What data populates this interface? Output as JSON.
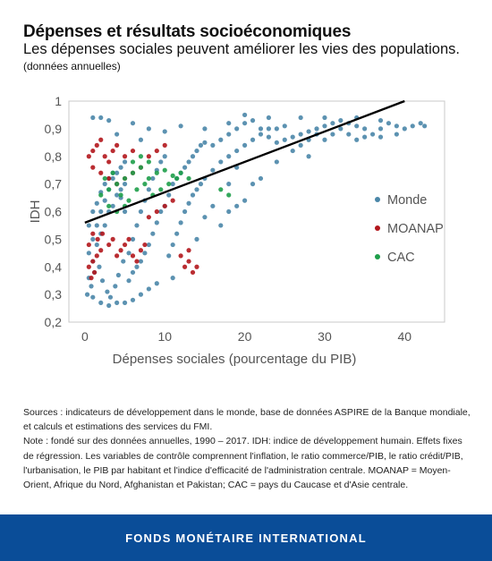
{
  "header": {
    "title": "Dépenses et résultats socioéconomiques",
    "subtitle": "Les dépenses sociales peuvent améliorer les vies des populations.",
    "note": "(données annuelles)"
  },
  "chart_data": {
    "type": "scatter",
    "xlabel": "Dépenses sociales (pourcentage du PIB)",
    "ylabel": "IDH",
    "xlim": [
      -2,
      45
    ],
    "ylim": [
      0.2,
      1.0
    ],
    "x_ticks": [
      "0",
      "10",
      "20",
      "30",
      "40"
    ],
    "x_tick_values": [
      0,
      10,
      20,
      30,
      40
    ],
    "y_ticks": [
      "0,2",
      "0,3",
      "0,4",
      "0,5",
      "0,6",
      "0,7",
      "0,8",
      "0,9",
      "1"
    ],
    "y_tick_values": [
      0.2,
      0.3,
      0.4,
      0.5,
      0.6,
      0.7,
      0.8,
      0.9,
      1.0
    ],
    "grid": false,
    "legend_position": "right",
    "series": [
      {
        "name": "Monde",
        "color": "#4a86a8",
        "points": [
          [
            0.5,
            0.36
          ],
          [
            1,
            0.42
          ],
          [
            1.5,
            0.48
          ],
          [
            2,
            0.52
          ],
          [
            2.5,
            0.55
          ],
          [
            3,
            0.6
          ],
          [
            3.5,
            0.62
          ],
          [
            4,
            0.66
          ],
          [
            4.5,
            0.68
          ],
          [
            5,
            0.7
          ],
          [
            0.5,
            0.45
          ],
          [
            1,
            0.5
          ],
          [
            1.5,
            0.55
          ],
          [
            2,
            0.6
          ],
          [
            2.5,
            0.64
          ],
          [
            3,
            0.68
          ],
          [
            3.5,
            0.72
          ],
          [
            4,
            0.74
          ],
          [
            4.5,
            0.76
          ],
          [
            5,
            0.78
          ],
          [
            0.5,
            0.55
          ],
          [
            1,
            0.6
          ],
          [
            1.5,
            0.63
          ],
          [
            2,
            0.67
          ],
          [
            2.5,
            0.7
          ],
          [
            3,
            0.72
          ],
          [
            3.5,
            0.74
          ],
          [
            4,
            0.7
          ],
          [
            4.5,
            0.65
          ],
          [
            5,
            0.6
          ],
          [
            0.3,
            0.3
          ],
          [
            0.8,
            0.33
          ],
          [
            1.2,
            0.38
          ],
          [
            1.8,
            0.4
          ],
          [
            2.2,
            0.35
          ],
          [
            2.8,
            0.31
          ],
          [
            3.2,
            0.29
          ],
          [
            3.8,
            0.33
          ],
          [
            4.2,
            0.37
          ],
          [
            4.8,
            0.42
          ],
          [
            5.5,
            0.45
          ],
          [
            6,
            0.5
          ],
          [
            6.5,
            0.55
          ],
          [
            7,
            0.6
          ],
          [
            7.5,
            0.64
          ],
          [
            8,
            0.68
          ],
          [
            8.5,
            0.72
          ],
          [
            9,
            0.75
          ],
          [
            9.5,
            0.78
          ],
          [
            10,
            0.8
          ],
          [
            5.5,
            0.35
          ],
          [
            6,
            0.38
          ],
          [
            6.5,
            0.4
          ],
          [
            7,
            0.42
          ],
          [
            7.5,
            0.45
          ],
          [
            8,
            0.48
          ],
          [
            8.5,
            0.52
          ],
          [
            9,
            0.56
          ],
          [
            9.5,
            0.6
          ],
          [
            10,
            0.62
          ],
          [
            10.5,
            0.66
          ],
          [
            11,
            0.7
          ],
          [
            11.5,
            0.72
          ],
          [
            12,
            0.74
          ],
          [
            12.5,
            0.76
          ],
          [
            13,
            0.78
          ],
          [
            13.5,
            0.8
          ],
          [
            14,
            0.82
          ],
          [
            14.5,
            0.84
          ],
          [
            15,
            0.85
          ],
          [
            10.5,
            0.44
          ],
          [
            11,
            0.48
          ],
          [
            11.5,
            0.52
          ],
          [
            12,
            0.56
          ],
          [
            12.5,
            0.6
          ],
          [
            13,
            0.63
          ],
          [
            13.5,
            0.66
          ],
          [
            14,
            0.68
          ],
          [
            14.5,
            0.7
          ],
          [
            15,
            0.72
          ],
          [
            16,
            0.75
          ],
          [
            17,
            0.78
          ],
          [
            18,
            0.8
          ],
          [
            19,
            0.82
          ],
          [
            20,
            0.84
          ],
          [
            21,
            0.86
          ],
          [
            22,
            0.88
          ],
          [
            23,
            0.9
          ],
          [
            24,
            0.9
          ],
          [
            25,
            0.91
          ],
          [
            16,
            0.84
          ],
          [
            17,
            0.86
          ],
          [
            18,
            0.88
          ],
          [
            19,
            0.9
          ],
          [
            20,
            0.92
          ],
          [
            21,
            0.93
          ],
          [
            22,
            0.9
          ],
          [
            23,
            0.87
          ],
          [
            24,
            0.85
          ],
          [
            25,
            0.86
          ],
          [
            26,
            0.87
          ],
          [
            27,
            0.88
          ],
          [
            28,
            0.89
          ],
          [
            29,
            0.9
          ],
          [
            30,
            0.91
          ],
          [
            31,
            0.92
          ],
          [
            32,
            0.93
          ],
          [
            33,
            0.92
          ],
          [
            34,
            0.91
          ],
          [
            35,
            0.9
          ],
          [
            26,
            0.82
          ],
          [
            27,
            0.84
          ],
          [
            28,
            0.86
          ],
          [
            29,
            0.88
          ],
          [
            30,
            0.86
          ],
          [
            31,
            0.88
          ],
          [
            32,
            0.9
          ],
          [
            33,
            0.88
          ],
          [
            34,
            0.86
          ],
          [
            35,
            0.87
          ],
          [
            36,
            0.88
          ],
          [
            37,
            0.9
          ],
          [
            38,
            0.92
          ],
          [
            39,
            0.91
          ],
          [
            40,
            0.9
          ],
          [
            41,
            0.91
          ],
          [
            42,
            0.92
          ],
          [
            42.5,
            0.91
          ],
          [
            37,
            0.87
          ],
          [
            39,
            0.88
          ],
          [
            17,
            0.55
          ],
          [
            18,
            0.6
          ],
          [
            19,
            0.62
          ],
          [
            20,
            0.64
          ],
          [
            21,
            0.7
          ],
          [
            22,
            0.72
          ],
          [
            18,
            0.7
          ],
          [
            16,
            0.62
          ],
          [
            15,
            0.58
          ],
          [
            14,
            0.5
          ],
          [
            1,
            0.94
          ],
          [
            2,
            0.94
          ],
          [
            3,
            0.93
          ],
          [
            6,
            0.92
          ],
          [
            12,
            0.91
          ],
          [
            15,
            0.9
          ],
          [
            8,
            0.9
          ],
          [
            10,
            0.89
          ],
          [
            4,
            0.88
          ],
          [
            7,
            0.86
          ],
          [
            3,
            0.26
          ],
          [
            4,
            0.27
          ],
          [
            5,
            0.27
          ],
          [
            6,
            0.28
          ],
          [
            7,
            0.3
          ],
          [
            8,
            0.32
          ],
          [
            9,
            0.34
          ],
          [
            2,
            0.27
          ],
          [
            1,
            0.29
          ],
          [
            11,
            0.36
          ],
          [
            18,
            0.92
          ],
          [
            20,
            0.95
          ],
          [
            23,
            0.94
          ],
          [
            27,
            0.94
          ],
          [
            30,
            0.94
          ],
          [
            34,
            0.94
          ],
          [
            37,
            0.93
          ],
          [
            19,
            0.76
          ],
          [
            24,
            0.78
          ],
          [
            28,
            0.8
          ]
        ]
      },
      {
        "name": "MOANAP",
        "color": "#b2161c",
        "points": [
          [
            0.5,
            0.8
          ],
          [
            1,
            0.82
          ],
          [
            1.5,
            0.84
          ],
          [
            2,
            0.86
          ],
          [
            2.5,
            0.8
          ],
          [
            3,
            0.78
          ],
          [
            3.5,
            0.82
          ],
          [
            4,
            0.84
          ],
          [
            1,
            0.76
          ],
          [
            2,
            0.74
          ],
          [
            3,
            0.72
          ],
          [
            4,
            0.7
          ],
          [
            5,
            0.72
          ],
          [
            6,
            0.74
          ],
          [
            7,
            0.76
          ],
          [
            8,
            0.8
          ],
          [
            9,
            0.82
          ],
          [
            10,
            0.84
          ],
          [
            5,
            0.8
          ],
          [
            6,
            0.82
          ],
          [
            0.5,
            0.4
          ],
          [
            1,
            0.42
          ],
          [
            1.5,
            0.44
          ],
          [
            2,
            0.46
          ],
          [
            0.8,
            0.36
          ],
          [
            1.2,
            0.38
          ],
          [
            1.6,
            0.5
          ],
          [
            2.2,
            0.52
          ],
          [
            0.5,
            0.48
          ],
          [
            1,
            0.52
          ],
          [
            3,
            0.48
          ],
          [
            3.5,
            0.5
          ],
          [
            4,
            0.44
          ],
          [
            4.5,
            0.46
          ],
          [
            5,
            0.48
          ],
          [
            5.5,
            0.5
          ],
          [
            6,
            0.44
          ],
          [
            6.5,
            0.42
          ],
          [
            7,
            0.46
          ],
          [
            7.5,
            0.48
          ],
          [
            12,
            0.44
          ],
          [
            13,
            0.42
          ],
          [
            14,
            0.4
          ],
          [
            13.5,
            0.38
          ],
          [
            12.5,
            0.4
          ],
          [
            13,
            0.46
          ],
          [
            9,
            0.6
          ],
          [
            10,
            0.62
          ],
          [
            11,
            0.64
          ],
          [
            8,
            0.58
          ]
        ]
      },
      {
        "name": "CAC",
        "color": "#1e9e4a",
        "points": [
          [
            2,
            0.66
          ],
          [
            3,
            0.68
          ],
          [
            4,
            0.7
          ],
          [
            5,
            0.72
          ],
          [
            6,
            0.74
          ],
          [
            7,
            0.76
          ],
          [
            8,
            0.72
          ],
          [
            9,
            0.74
          ],
          [
            10,
            0.75
          ],
          [
            11,
            0.73
          ],
          [
            2.5,
            0.72
          ],
          [
            3.5,
            0.74
          ],
          [
            4.5,
            0.66
          ],
          [
            5.5,
            0.64
          ],
          [
            6.5,
            0.68
          ],
          [
            7.5,
            0.7
          ],
          [
            8.5,
            0.66
          ],
          [
            9.5,
            0.68
          ],
          [
            10.5,
            0.7
          ],
          [
            11.5,
            0.72
          ],
          [
            3,
            0.62
          ],
          [
            4,
            0.6
          ],
          [
            5,
            0.62
          ],
          [
            6,
            0.78
          ],
          [
            7,
            0.8
          ],
          [
            8,
            0.78
          ],
          [
            12,
            0.74
          ],
          [
            13,
            0.72
          ],
          [
            17,
            0.68
          ],
          [
            18,
            0.66
          ]
        ]
      }
    ],
    "trendline": {
      "x": [
        0,
        40
      ],
      "y": [
        0.56,
        1.0
      ],
      "color": "#000000"
    }
  },
  "footnotes": {
    "sources": "Sources : indicateurs de développement dans le monde, base de données ASPIRE de la Banque mondiale, et calculs et estimations des services du FMI.",
    "note": "Note : fondé sur des données annuelles, 1990 – 2017. IDH: indice de développement humain. Effets fixes de régression. Les variables de contrôle comprennent l'inflation, le ratio commerce/PIB, le ratio crédit/PIB, l'urbanisation, le PIB par habitant et l'indice d'efficacité de l'administration centrale. MOANAP = Moyen-Orient, Afrique du Nord, Afghanistan et Pakistan; CAC = pays du Caucase et d'Asie centrale."
  },
  "footer": {
    "label": "FONDS MONÉTAIRE INTERNATIONAL"
  }
}
